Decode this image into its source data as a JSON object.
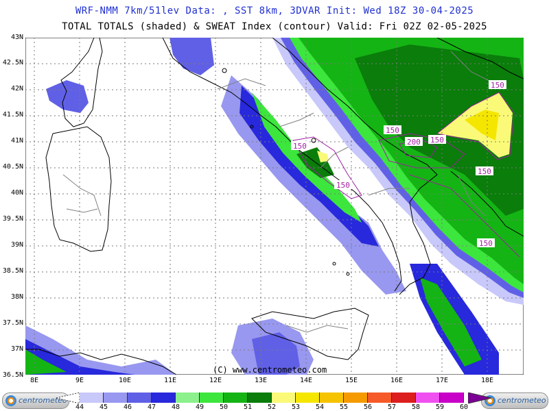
{
  "header": {
    "line1": "WRF-NMM 7km/51lev  Data: , SST 8km, 3DVAR  Init: Wed 18Z 30-04-2025",
    "line2": "TOTAL TOTALS (shaded) & SWEAT Index (contour)  Valid: Fri 02Z 02-05-2025"
  },
  "lat_labels": [
    "43N",
    "42.5N",
    "42N",
    "41.5N",
    "41N",
    "40.5N",
    "40N",
    "39.5N",
    "39N",
    "38.5N",
    "38N",
    "37.5N",
    "37N",
    "36.5N"
  ],
  "lon_labels": [
    "8E",
    "9E",
    "10E",
    "11E",
    "12E",
    "13E",
    "14E",
    "15E",
    "16E",
    "17E",
    "18E"
  ],
  "copyright": "(C) www.centrometeo.com",
  "contour_labels": [
    "150",
    "150",
    "200",
    "150",
    "150",
    "150",
    "150",
    "150"
  ],
  "legend": {
    "values": [
      "44",
      "45",
      "46",
      "47",
      "48",
      "49",
      "50",
      "51",
      "52",
      "53",
      "54",
      "55",
      "56",
      "57",
      "58",
      "59",
      "60"
    ],
    "colors": [
      "#c8c8fa",
      "#9898f0",
      "#6060e6",
      "#2828dc",
      "#8cf08c",
      "#3ce63c",
      "#14b414",
      "#0a7d0a",
      "#fafa78",
      "#f5e600",
      "#f5c300",
      "#f59b00",
      "#f55a28",
      "#dc1e1e",
      "#f050f0",
      "#c800c8",
      "#7d0096"
    ]
  },
  "logos": {
    "left": "centrometeo",
    "right": "centrometeo"
  },
  "colors": {
    "title": "#1f2fd1",
    "contour": "#a020a0",
    "coast": "#000000",
    "border": "#808080"
  }
}
